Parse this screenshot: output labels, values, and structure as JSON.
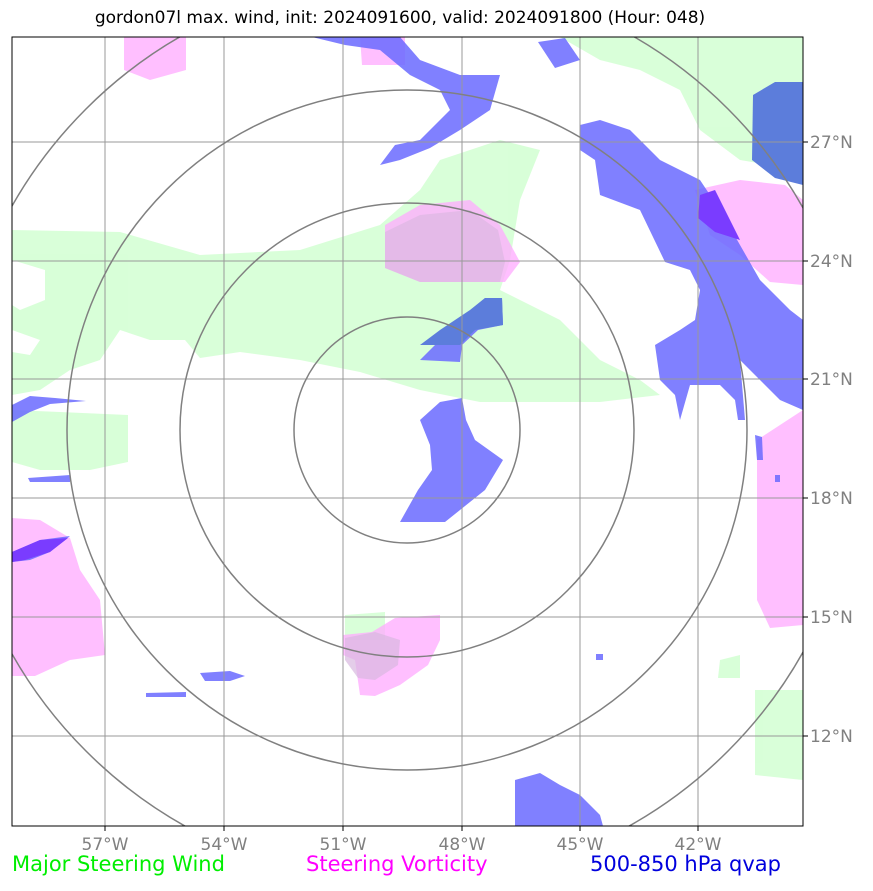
{
  "title": "gordon07l max. wind, init: 2024091600, valid: 2024091800 (Hour: 048)",
  "map": {
    "lon_labels": [
      "57°W",
      "54°W",
      "51°W",
      "48°W",
      "45°W",
      "42°W"
    ],
    "lat_labels": [
      "27°N",
      "24°N",
      "21°N",
      "18°N",
      "15°N",
      "12°N"
    ],
    "colors": {
      "steering_wind": "#ccffcc",
      "steering_vorticity": "#ffaaff",
      "qvap": "#6a6aff",
      "grid": "#999999",
      "range_ring": "#808080"
    }
  },
  "legend": {
    "wind": "Major Steering Wind",
    "vorticity": "Steering Vorticity",
    "qvap": "500-850 hPa qvap"
  }
}
